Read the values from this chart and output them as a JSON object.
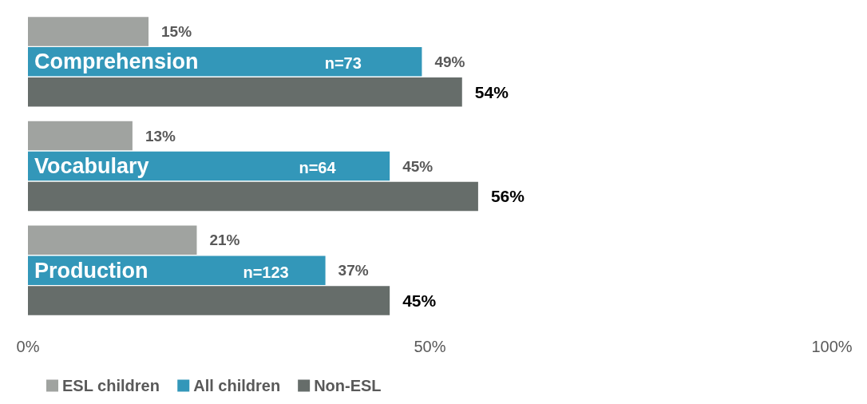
{
  "chart_data": {
    "type": "bar",
    "orientation": "horizontal",
    "categories": [
      "Comprehension",
      "Vocabulary",
      "Production"
    ],
    "series": [
      {
        "name": "ESL children",
        "color": "#a0a3a0",
        "values": [
          15,
          13,
          21
        ],
        "value_labels": [
          "15%",
          "13%",
          "21%"
        ]
      },
      {
        "name": "All children",
        "color": "#3397b9",
        "values": [
          49,
          45,
          37
        ],
        "value_labels": [
          "49%",
          "45%",
          "37%"
        ]
      },
      {
        "name": "Non-ESL",
        "color": "#666d6a",
        "values": [
          54,
          56,
          45
        ],
        "value_labels": [
          "54%",
          "56%",
          "45%"
        ]
      }
    ],
    "xlim": [
      0,
      100
    ],
    "xticks": [
      {
        "value": 0,
        "label": "0%"
      },
      {
        "value": 50,
        "label": "50%"
      },
      {
        "value": 100,
        "label": "100%"
      }
    ],
    "annotations": [
      "n=73",
      "n=64",
      "n=123"
    ],
    "grid": false,
    "legend": "bottom left"
  }
}
